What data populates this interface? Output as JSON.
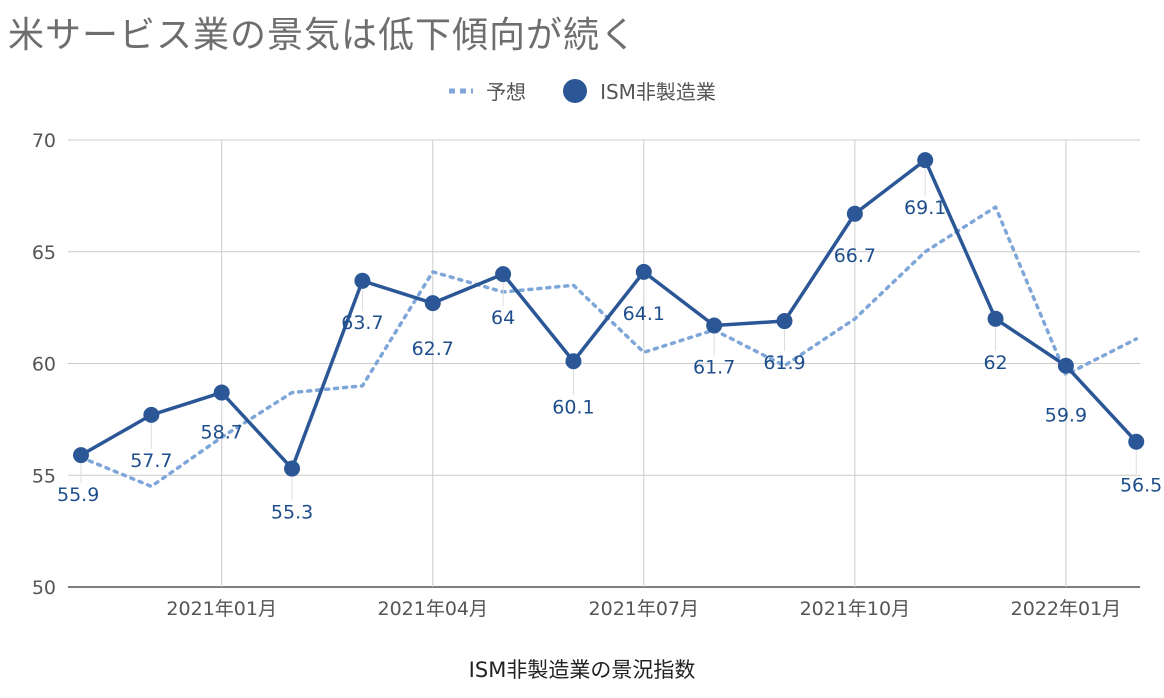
{
  "title": "米サービス業の景気は低下傾向が続く",
  "chart_data": {
    "type": "line",
    "title": "米サービス業の景気は低下傾向が続く",
    "xlabel": "ISM非製造業の景況指数",
    "ylabel": "",
    "ylim": [
      50,
      70
    ],
    "yticks": [
      "50",
      "55",
      "60",
      "65",
      "70"
    ],
    "xticks": [
      "2021年01月",
      "2021年04月",
      "2021年07月",
      "2021年10月",
      "2022年01月"
    ],
    "x": [
      "2020-11",
      "2020-12",
      "2021-01",
      "2021-02",
      "2021-03",
      "2021-04",
      "2021-05",
      "2021-06",
      "2021-07",
      "2021-08",
      "2021-09",
      "2021-10",
      "2021-11",
      "2021-12",
      "2022-01",
      "2022-02"
    ],
    "grid": true,
    "legend_position": "top",
    "series": [
      {
        "name": "予想",
        "style": "dotted",
        "color": "#7ea6d8",
        "values": [
          55.8,
          54.5,
          56.7,
          58.7,
          59.0,
          64.1,
          63.2,
          63.5,
          60.5,
          61.5,
          59.9,
          62.0,
          65.0,
          67.0,
          59.5,
          61.1
        ]
      },
      {
        "name": "ISM非製造業",
        "style": "solid-markers",
        "color": "#2b5797",
        "values": [
          55.9,
          57.7,
          58.7,
          55.3,
          63.7,
          62.7,
          64.0,
          60.1,
          64.1,
          61.7,
          61.9,
          66.7,
          69.1,
          62.0,
          59.9,
          56.5
        ],
        "labels": [
          "55.9",
          "57.7",
          "58.7",
          "55.3",
          "63.7",
          "62.7",
          "64",
          "60.1",
          "64.1",
          "61.7",
          "61.9",
          "66.7",
          "69.1",
          "62",
          "59.9",
          "56.5"
        ]
      }
    ]
  }
}
